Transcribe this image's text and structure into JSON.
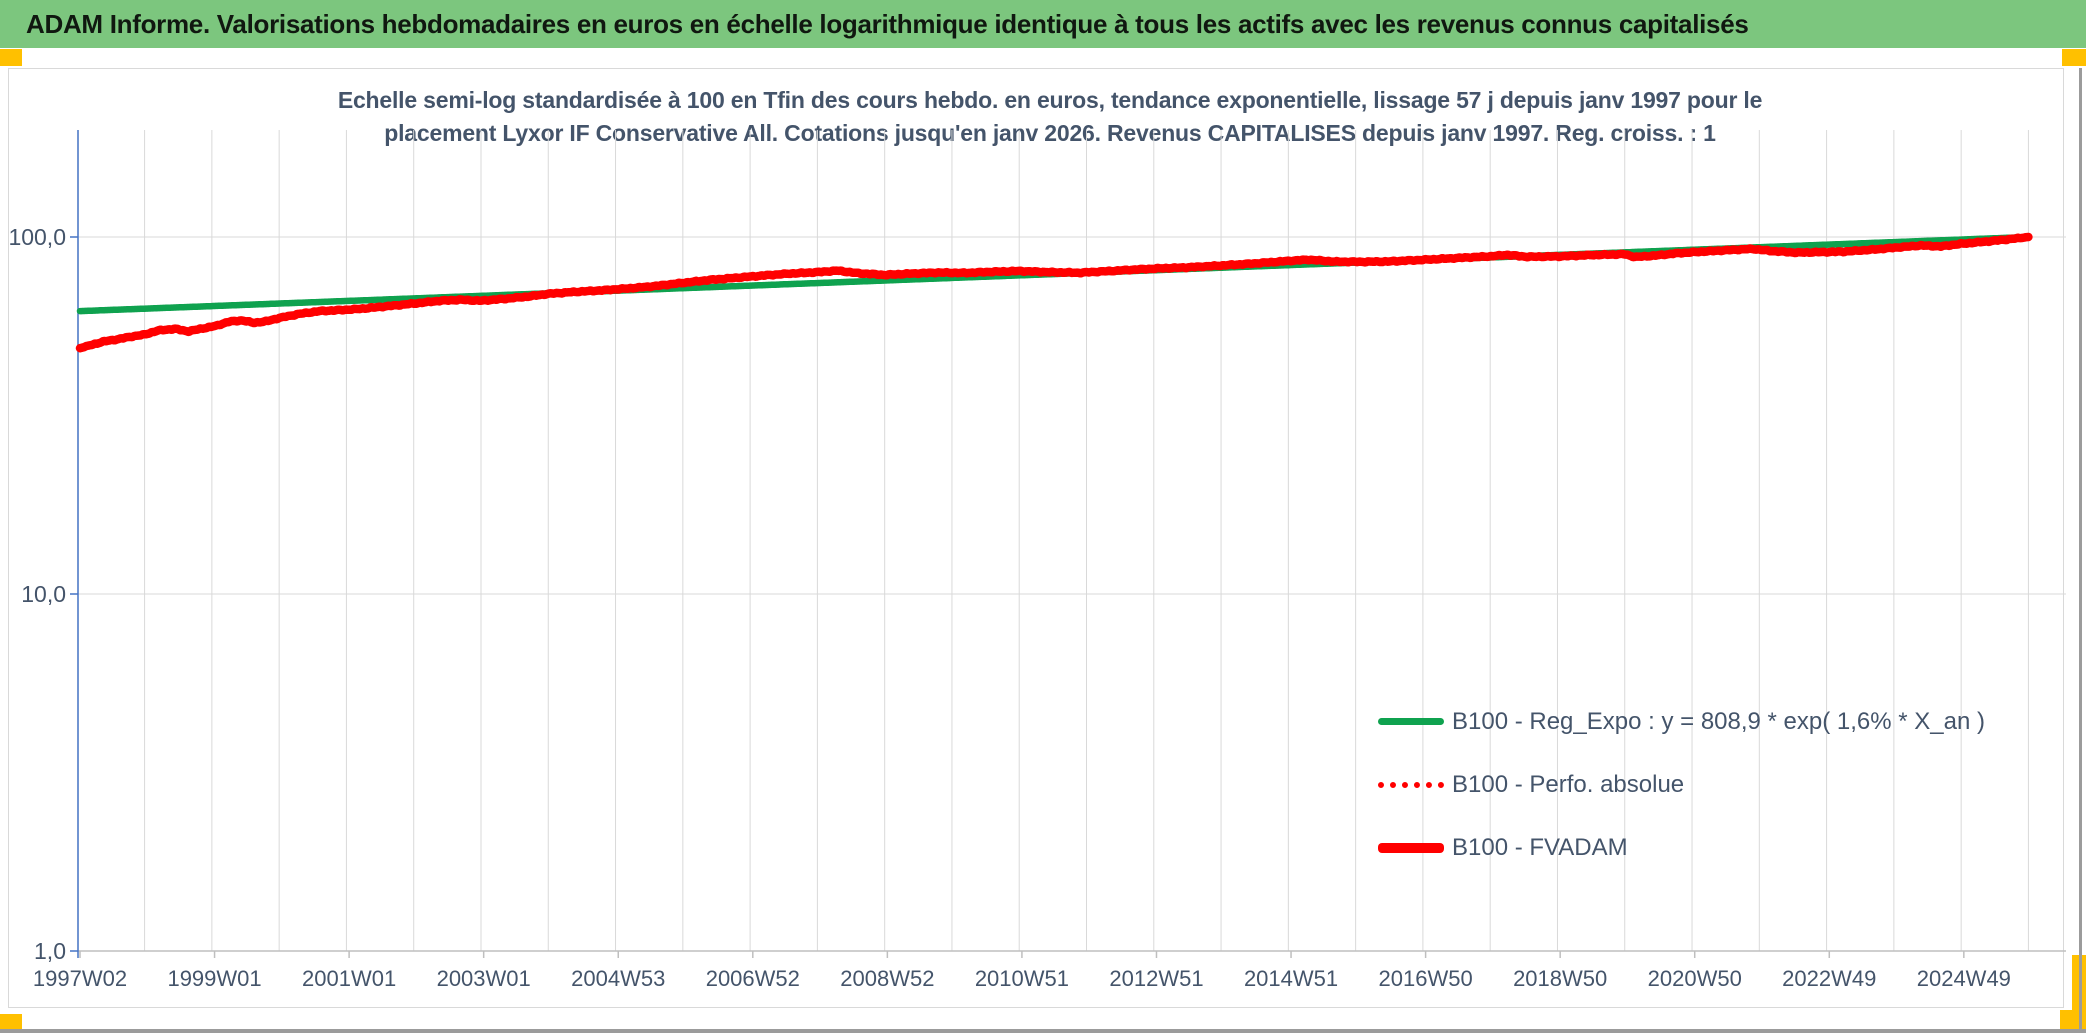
{
  "header": {
    "title": "ADAM Informe. Valorisations hebdomadaires en euros en échelle logarithmique identique à tous les actifs avec les revenus connus capitalisés",
    "bg_color": "#7CC67E",
    "text_color": "#101810"
  },
  "accents": {
    "color": "#FFC000"
  },
  "chart": {
    "title_lines": [
      "Echelle semi-log standardisée à 100 en Tfin des cours hebdo. en euros, tendance exponentielle, lissage 57 j depuis janv 1997 pour le",
      "placement Lyxor IF Conservative All. Cotations jusqu'en janv 2026. Revenus CAPITALISES depuis janv 1997. Reg. croiss. : 1"
    ],
    "title_color": "#44546A",
    "axis_text_color": "#44546A",
    "legend_text_color": "#44546A",
    "grid_color": "#D9D9D9",
    "y_axis_line_color": "#4472C4",
    "x_axis_line_color": "#BFBFBF"
  },
  "chart_data": {
    "type": "line",
    "x_axis": {
      "unit": "ISO week (yearWweek)",
      "tick_labels": [
        "1997W02",
        "1999W01",
        "2001W01",
        "2003W01",
        "2004W53",
        "2006W52",
        "2008W52",
        "2010W51",
        "2012W51",
        "2014W51",
        "2016W50",
        "2018W50",
        "2020W50",
        "2022W49",
        "2024W49"
      ],
      "tick_years": [
        1997.04,
        1999.04,
        2001.04,
        2003.04,
        2005.04,
        2007.04,
        2009.04,
        2011.04,
        2013.04,
        2015.04,
        2017.04,
        2019.04,
        2021.04,
        2023.04,
        2025.04
      ],
      "start_year": 1997.04,
      "end_year": 2026.0,
      "gridlines": "every year"
    },
    "y_axis": {
      "scale": "log10",
      "ticks": [
        {
          "label": "100,0",
          "value": 100
        },
        {
          "label": "10,0",
          "value": 10
        },
        {
          "label": "1,0",
          "value": 1
        }
      ],
      "range": [
        1,
        200
      ],
      "gridlines": "decades only",
      "base_value": "series standardized to 100 at final date (janv 2026)"
    },
    "legend_position": "inside right-middle",
    "series": [
      {
        "name": "B100 - Reg_Expo : y = 808,9 * exp( 1,6% *  X_an )",
        "color": "#0FA24F",
        "style": "solid",
        "legend_swatch": "solid",
        "stroke_px": 6.5,
        "shape": "exponential trend (straight on semi-log axis)",
        "points": [
          [
            1997.04,
            62.0
          ],
          [
            2026.0,
            100.0
          ]
        ]
      },
      {
        "name": "B100 - Perfo. absolue",
        "color": "#FF0000",
        "style": "dotted",
        "legend_swatch": "dotted",
        "stroke_px": 4.5,
        "coincides_with": "B100 - FVADAM",
        "points": []
      },
      {
        "name": "B100 - FVADAM",
        "color": "#FF0000",
        "style": "solid",
        "legend_swatch": "thick",
        "stroke_px": 8.5,
        "points": [
          [
            1997.04,
            48.8
          ],
          [
            1997.2,
            49.8
          ],
          [
            1997.4,
            51.0
          ],
          [
            1997.6,
            51.7
          ],
          [
            1997.8,
            52.6
          ],
          [
            1998.0,
            53.3
          ],
          [
            1998.2,
            54.7
          ],
          [
            1998.45,
            55.3
          ],
          [
            1998.65,
            54.4
          ],
          [
            1998.85,
            55.4
          ],
          [
            1999.05,
            56.3
          ],
          [
            1999.25,
            57.9
          ],
          [
            1999.45,
            58.4
          ],
          [
            1999.62,
            57.5
          ],
          [
            1999.8,
            58.0
          ],
          [
            2000.0,
            59.3
          ],
          [
            2000.3,
            60.9
          ],
          [
            2000.6,
            62.0
          ],
          [
            2000.9,
            62.4
          ],
          [
            2001.2,
            62.9
          ],
          [
            2001.5,
            63.7
          ],
          [
            2001.8,
            64.5
          ],
          [
            2002.1,
            65.4
          ],
          [
            2002.4,
            66.3
          ],
          [
            2002.7,
            66.7
          ],
          [
            2003.0,
            66.3
          ],
          [
            2003.35,
            67.1
          ],
          [
            2003.7,
            68.1
          ],
          [
            2004.0,
            69.3
          ],
          [
            2004.4,
            70.2
          ],
          [
            2004.8,
            70.9
          ],
          [
            2005.2,
            71.8
          ],
          [
            2005.6,
            72.9
          ],
          [
            2006.0,
            74.4
          ],
          [
            2006.4,
            75.8
          ],
          [
            2006.8,
            76.9
          ],
          [
            2007.2,
            78.0
          ],
          [
            2007.6,
            79.0
          ],
          [
            2008.0,
            79.7
          ],
          [
            2008.3,
            80.5
          ],
          [
            2008.6,
            79.2
          ],
          [
            2009.0,
            78.3
          ],
          [
            2009.4,
            79.0
          ],
          [
            2009.8,
            79.5
          ],
          [
            2010.2,
            79.3
          ],
          [
            2010.6,
            79.9
          ],
          [
            2011.0,
            80.3
          ],
          [
            2011.45,
            79.7
          ],
          [
            2011.9,
            79.4
          ],
          [
            2012.3,
            80.2
          ],
          [
            2012.7,
            81.0
          ],
          [
            2013.1,
            81.7
          ],
          [
            2013.5,
            82.2
          ],
          [
            2014.0,
            83.2
          ],
          [
            2014.5,
            84.3
          ],
          [
            2015.0,
            85.7
          ],
          [
            2015.3,
            86.4
          ],
          [
            2015.7,
            85.3
          ],
          [
            2016.1,
            85.2
          ],
          [
            2016.5,
            85.4
          ],
          [
            2017.0,
            86.3
          ],
          [
            2017.5,
            87.3
          ],
          [
            2018.0,
            88.3
          ],
          [
            2018.25,
            89.1
          ],
          [
            2018.55,
            88.0
          ],
          [
            2019.0,
            88.2
          ],
          [
            2019.5,
            89.0
          ],
          [
            2020.0,
            89.5
          ],
          [
            2020.15,
            87.9
          ],
          [
            2020.45,
            88.7
          ],
          [
            2020.8,
            90.1
          ],
          [
            2021.2,
            91.1
          ],
          [
            2021.6,
            92.0
          ],
          [
            2021.9,
            92.6
          ],
          [
            2022.2,
            91.3
          ],
          [
            2022.55,
            90.4
          ],
          [
            2022.9,
            90.7
          ],
          [
            2023.25,
            91.0
          ],
          [
            2023.6,
            91.9
          ],
          [
            2024.0,
            93.3
          ],
          [
            2024.4,
            94.7
          ],
          [
            2024.7,
            94.1
          ],
          [
            2025.0,
            95.7
          ],
          [
            2025.35,
            97.0
          ],
          [
            2025.7,
            98.5
          ],
          [
            2026.0,
            100.0
          ]
        ]
      }
    ]
  }
}
